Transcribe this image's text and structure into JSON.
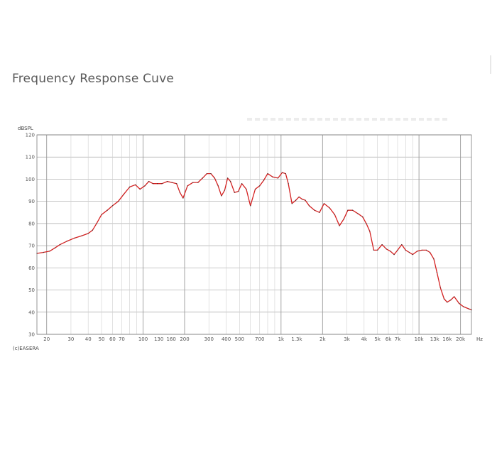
{
  "page": {
    "heading": "Frequency Response Cuve"
  },
  "chart_data": {
    "type": "line",
    "title": "Frequency Response Cuve",
    "ylabel": "dBSPL",
    "xunit": "Hz",
    "watermark": "(c)EASERA",
    "x_scale": "log",
    "xlim": [
      17,
      24000
    ],
    "ylim": [
      30,
      120
    ],
    "grid": true,
    "y_ticks": [
      "120",
      "110",
      "100",
      "90",
      "80",
      "70",
      "60",
      "50",
      "40",
      "30"
    ],
    "x_ticks": [
      {
        "value": 20,
        "label": "20"
      },
      {
        "value": 30,
        "label": "30"
      },
      {
        "value": 40,
        "label": "40"
      },
      {
        "value": 50,
        "label": "50"
      },
      {
        "value": 60,
        "label": "60"
      },
      {
        "value": 70,
        "label": "70"
      },
      {
        "value": 100,
        "label": "100"
      },
      {
        "value": 130,
        "label": "130"
      },
      {
        "value": 160,
        "label": "160"
      },
      {
        "value": 200,
        "label": "200"
      },
      {
        "value": 300,
        "label": "300"
      },
      {
        "value": 400,
        "label": "400"
      },
      {
        "value": 500,
        "label": "500"
      },
      {
        "value": 700,
        "label": "700"
      },
      {
        "value": 1000,
        "label": "1k"
      },
      {
        "value": 1300,
        "label": "1.3k"
      },
      {
        "value": 2000,
        "label": "2k"
      },
      {
        "value": 3000,
        "label": "3k"
      },
      {
        "value": 4000,
        "label": "4k"
      },
      {
        "value": 5000,
        "label": "5k"
      },
      {
        "value": 6000,
        "label": "6k"
      },
      {
        "value": 7000,
        "label": "7k"
      },
      {
        "value": 10000,
        "label": "10k"
      },
      {
        "value": 13000,
        "label": "13k"
      },
      {
        "value": 16000,
        "label": "16k"
      },
      {
        "value": 20000,
        "label": "20k"
      }
    ],
    "series": [
      {
        "color": "#d42020",
        "x": [
          17,
          19,
          21,
          23,
          25,
          28,
          32,
          36,
          40,
          43,
          46,
          50,
          55,
          60,
          66,
          72,
          80,
          88,
          95,
          103,
          110,
          118,
          127,
          137,
          150,
          162,
          175,
          185,
          195,
          210,
          230,
          250,
          270,
          290,
          310,
          330,
          350,
          370,
          390,
          410,
          430,
          460,
          490,
          520,
          560,
          600,
          650,
          700,
          750,
          800,
          870,
          950,
          1020,
          1080,
          1130,
          1200,
          1280,
          1350,
          1420,
          1500,
          1600,
          1750,
          1900,
          2050,
          2250,
          2450,
          2650,
          2850,
          3050,
          3300,
          3600,
          3900,
          4150,
          4400,
          4700,
          5000,
          5400,
          5800,
          6200,
          6600,
          7000,
          7500,
          8000,
          8500,
          9000,
          9700,
          10500,
          11300,
          12000,
          12800,
          13500,
          14300,
          15200,
          16000,
          17000,
          18000,
          19500,
          21000,
          23000,
          24000
        ],
        "y": [
          66.5,
          67,
          67.5,
          69,
          70.5,
          72,
          73.5,
          74.5,
          75.5,
          77,
          80,
          84,
          86,
          88,
          90,
          93,
          96.5,
          97.5,
          95.5,
          97,
          99,
          98,
          98,
          98,
          99,
          98.5,
          98,
          94,
          91.5,
          97,
          98.5,
          98.5,
          100.5,
          102.5,
          102.5,
          100.5,
          97,
          92.5,
          95,
          100.5,
          99,
          94,
          94.5,
          98,
          95.5,
          88,
          95.5,
          97,
          99.5,
          102.5,
          101,
          100.5,
          103,
          102.5,
          98,
          89,
          90.5,
          92,
          91,
          90.5,
          88,
          86,
          85,
          89,
          87,
          84,
          79,
          82,
          86,
          86,
          84.5,
          83,
          80,
          76.5,
          68,
          68,
          70.5,
          68.5,
          67.5,
          66,
          68,
          70.5,
          68,
          67,
          66,
          67.5,
          68,
          68,
          67,
          64,
          58,
          51,
          46,
          44.5,
          45.5,
          47,
          44,
          42.5,
          41.5,
          41
        ]
      }
    ]
  }
}
